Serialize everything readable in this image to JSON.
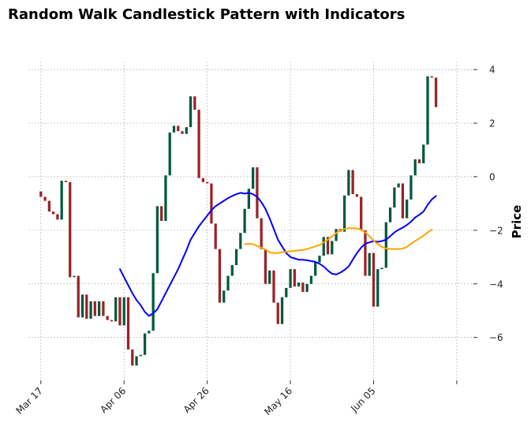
{
  "chart_data": {
    "type": "candlestick",
    "title": "Random Walk Candlestick Pattern with Indicators",
    "ylabel": "Price",
    "xlabel": "",
    "ylim": [
      -7.6,
      4.3
    ],
    "x_tick_labels": [
      "Mar 17",
      "Apr 06",
      "Apr 26",
      "May 16",
      "Jun 05",
      ""
    ],
    "x_tick_dates": [
      "2023-03-17",
      "2023-04-06",
      "2023-04-26",
      "2023-05-16",
      "2023-06-05",
      "2023-06-25"
    ],
    "y_ticks": [
      -6,
      -4,
      -2,
      0,
      2,
      4
    ],
    "y_tick_labels": [
      "−6",
      "−4",
      "−2",
      "0",
      "2",
      "4"
    ],
    "xlim": [
      "2023-03-14",
      "2023-06-29"
    ],
    "grid": true,
    "colors": {
      "up": "#00593a",
      "down": "#9b2226",
      "ma_short": "#0000ff",
      "ma_long": "#ffa500",
      "grid": "#aaaaaa"
    },
    "candles": [
      {
        "date": "2023-03-17",
        "open": -0.55,
        "close": -0.75
      },
      {
        "date": "2023-03-18",
        "open": -0.75,
        "close": -0.9
      },
      {
        "date": "2023-03-19",
        "open": -0.9,
        "close": -1.3
      },
      {
        "date": "2023-03-20",
        "open": -1.3,
        "close": -1.4
      },
      {
        "date": "2023-03-21",
        "open": -1.4,
        "close": -1.6
      },
      {
        "date": "2023-03-22",
        "open": -1.6,
        "close": -0.15
      },
      {
        "date": "2023-03-23",
        "open": -0.15,
        "close": -0.2
      },
      {
        "date": "2023-03-24",
        "open": -0.2,
        "close": -3.75
      },
      {
        "date": "2023-03-25",
        "open": -3.75,
        "close": -3.7
      },
      {
        "date": "2023-03-26",
        "open": -3.7,
        "close": -5.25
      },
      {
        "date": "2023-03-27",
        "open": -5.25,
        "close": -4.4
      },
      {
        "date": "2023-03-28",
        "open": -4.4,
        "close": -5.3
      },
      {
        "date": "2023-03-29",
        "open": -5.3,
        "close": -4.65
      },
      {
        "date": "2023-03-30",
        "open": -4.65,
        "close": -5.2
      },
      {
        "date": "2023-03-31",
        "open": -5.2,
        "close": -4.65
      },
      {
        "date": "2023-04-01",
        "open": -4.65,
        "close": -5.2
      },
      {
        "date": "2023-04-02",
        "open": -5.2,
        "close": -5.35
      },
      {
        "date": "2023-04-03",
        "open": -5.35,
        "close": -5.4
      },
      {
        "date": "2023-04-04",
        "open": -5.4,
        "close": -4.5
      },
      {
        "date": "2023-04-05",
        "open": -4.5,
        "close": -5.55
      },
      {
        "date": "2023-04-06",
        "open": -5.55,
        "close": -4.5
      },
      {
        "date": "2023-04-07",
        "open": -4.5,
        "close": -6.45
      },
      {
        "date": "2023-04-08",
        "open": -6.45,
        "close": -7.05
      },
      {
        "date": "2023-04-09",
        "open": -7.05,
        "close": -6.7
      },
      {
        "date": "2023-04-10",
        "open": -6.7,
        "close": -6.65
      },
      {
        "date": "2023-04-11",
        "open": -6.65,
        "close": -5.85
      },
      {
        "date": "2023-04-12",
        "open": -5.85,
        "close": -5.75
      },
      {
        "date": "2023-04-13",
        "open": -5.75,
        "close": -3.6
      },
      {
        "date": "2023-04-14",
        "open": -3.6,
        "close": -1.1
      },
      {
        "date": "2023-04-15",
        "open": -1.1,
        "close": -1.65
      },
      {
        "date": "2023-04-16",
        "open": -1.65,
        "close": 0.05
      },
      {
        "date": "2023-04-17",
        "open": 0.05,
        "close": 1.65
      },
      {
        "date": "2023-04-18",
        "open": 1.65,
        "close": 1.9
      },
      {
        "date": "2023-04-19",
        "open": 1.9,
        "close": 1.7
      },
      {
        "date": "2023-04-20",
        "open": 1.7,
        "close": 1.6
      },
      {
        "date": "2023-04-21",
        "open": 1.6,
        "close": 1.85
      },
      {
        "date": "2023-04-22",
        "open": 1.85,
        "close": 3.0
      },
      {
        "date": "2023-04-23",
        "open": 3.0,
        "close": 2.5
      },
      {
        "date": "2023-04-24",
        "open": 2.5,
        "close": -0.05
      },
      {
        "date": "2023-04-25",
        "open": -0.05,
        "close": -0.2
      },
      {
        "date": "2023-04-26",
        "open": -0.2,
        "close": -0.25
      },
      {
        "date": "2023-04-27",
        "open": -0.25,
        "close": -1.75
      },
      {
        "date": "2023-04-28",
        "open": -1.75,
        "close": -2.7
      },
      {
        "date": "2023-04-29",
        "open": -2.7,
        "close": -4.7
      },
      {
        "date": "2023-04-30",
        "open": -4.7,
        "close": -4.25
      },
      {
        "date": "2023-05-01",
        "open": -4.25,
        "close": -3.7
      },
      {
        "date": "2023-05-02",
        "open": -3.7,
        "close": -3.3
      },
      {
        "date": "2023-05-03",
        "open": -3.3,
        "close": -2.7
      },
      {
        "date": "2023-05-04",
        "open": -2.7,
        "close": -2.1
      },
      {
        "date": "2023-05-05",
        "open": -2.1,
        "close": -1.2
      },
      {
        "date": "2023-05-06",
        "open": -1.2,
        "close": -0.45
      },
      {
        "date": "2023-05-07",
        "open": -0.45,
        "close": 0.35
      },
      {
        "date": "2023-05-08",
        "open": 0.35,
        "close": -1.55
      },
      {
        "date": "2023-05-09",
        "open": -1.55,
        "close": -2.7
      },
      {
        "date": "2023-05-10",
        "open": -2.7,
        "close": -4.0
      },
      {
        "date": "2023-05-11",
        "open": -4.0,
        "close": -3.5
      },
      {
        "date": "2023-05-12",
        "open": -3.5,
        "close": -4.7
      },
      {
        "date": "2023-05-13",
        "open": -4.7,
        "close": -5.5
      },
      {
        "date": "2023-05-14",
        "open": -5.5,
        "close": -4.5
      },
      {
        "date": "2023-05-15",
        "open": -4.5,
        "close": -4.15
      },
      {
        "date": "2023-05-16",
        "open": -4.15,
        "close": -3.45
      },
      {
        "date": "2023-05-17",
        "open": -3.45,
        "close": -4.1
      },
      {
        "date": "2023-05-18",
        "open": -4.1,
        "close": -3.95
      },
      {
        "date": "2023-05-19",
        "open": -3.95,
        "close": -4.3
      },
      {
        "date": "2023-05-20",
        "open": -4.3,
        "close": -4.0
      },
      {
        "date": "2023-05-21",
        "open": -4.0,
        "close": -3.7
      },
      {
        "date": "2023-05-22",
        "open": -3.7,
        "close": -3.2
      },
      {
        "date": "2023-05-23",
        "open": -3.2,
        "close": -2.95
      },
      {
        "date": "2023-05-24",
        "open": -2.95,
        "close": -2.25
      },
      {
        "date": "2023-05-25",
        "open": -2.25,
        "close": -2.9
      },
      {
        "date": "2023-05-26",
        "open": -2.9,
        "close": -2.4
      },
      {
        "date": "2023-05-27",
        "open": -2.4,
        "close": -1.95
      },
      {
        "date": "2023-05-28",
        "open": -1.95,
        "close": -2.05
      },
      {
        "date": "2023-05-29",
        "open": -2.05,
        "close": -0.7
      },
      {
        "date": "2023-05-30",
        "open": -0.7,
        "close": 0.25
      },
      {
        "date": "2023-05-31",
        "open": 0.25,
        "close": -0.65
      },
      {
        "date": "2023-06-01",
        "open": -0.65,
        "close": -0.75
      },
      {
        "date": "2023-06-02",
        "open": -0.75,
        "close": -2.0
      },
      {
        "date": "2023-06-03",
        "open": -2.0,
        "close": -3.7
      },
      {
        "date": "2023-06-04",
        "open": -3.7,
        "close": -2.85
      },
      {
        "date": "2023-06-05",
        "open": -2.85,
        "close": -4.85
      },
      {
        "date": "2023-06-06",
        "open": -4.85,
        "close": -3.45
      },
      {
        "date": "2023-06-07",
        "open": -3.45,
        "close": -3.4
      },
      {
        "date": "2023-06-08",
        "open": -3.4,
        "close": -1.7
      },
      {
        "date": "2023-06-09",
        "open": -1.7,
        "close": -1.15
      },
      {
        "date": "2023-06-10",
        "open": -1.15,
        "close": -0.4
      },
      {
        "date": "2023-06-11",
        "open": -0.4,
        "close": -0.25
      },
      {
        "date": "2023-06-12",
        "open": -0.25,
        "close": -1.55
      },
      {
        "date": "2023-06-13",
        "open": -1.55,
        "close": -0.85
      },
      {
        "date": "2023-06-14",
        "open": -0.85,
        "close": 0.05
      },
      {
        "date": "2023-06-15",
        "open": 0.05,
        "close": 0.65
      },
      {
        "date": "2023-06-16",
        "open": 0.65,
        "close": 0.5
      },
      {
        "date": "2023-06-17",
        "open": 0.5,
        "close": 1.2
      },
      {
        "date": "2023-06-18",
        "open": 1.2,
        "close": 3.75
      },
      {
        "date": "2023-06-19",
        "open": 3.75,
        "close": 3.7
      },
      {
        "date": "2023-06-20",
        "open": 3.7,
        "close": 2.6
      }
    ],
    "series": [
      {
        "values_date_start": "2023-04-05",
        "values": [
          -3.45,
          -3.75,
          -4.05,
          -4.35,
          -4.6,
          -4.8,
          -5.05,
          -5.2,
          -5.1,
          -4.95,
          -4.65,
          -4.35,
          -4.05,
          -3.75,
          -3.45,
          -3.1,
          -2.75,
          -2.35,
          -2.1,
          -1.85,
          -1.65,
          -1.45,
          -1.25,
          -1.1,
          -1.0,
          -0.9,
          -0.8,
          -0.72,
          -0.65,
          -0.6,
          -0.63,
          -0.6,
          -0.65,
          -0.75,
          -0.95,
          -1.2,
          -1.55,
          -1.95,
          -2.35,
          -2.6,
          -2.85,
          -3.0,
          -3.05,
          -3.1,
          -3.1,
          -3.12,
          -3.15,
          -3.18,
          -3.25,
          -3.35,
          -3.5,
          -3.62,
          -3.65,
          -3.58,
          -3.48,
          -3.35,
          -3.1,
          -2.85,
          -2.65,
          -2.5,
          -2.45,
          -2.4,
          -2.43,
          -2.4,
          -2.35,
          -2.22,
          -2.08,
          -1.98,
          -1.9,
          -1.8,
          -1.68,
          -1.52,
          -1.42,
          -1.3,
          -1.05,
          -0.85,
          -0.72
        ]
      },
      {
        "values_date_start": "2023-05-05",
        "values": [
          -2.52,
          -2.5,
          -2.52,
          -2.58,
          -2.65,
          -2.72,
          -2.82,
          -2.85,
          -2.85,
          -2.82,
          -2.8,
          -2.78,
          -2.77,
          -2.75,
          -2.73,
          -2.7,
          -2.65,
          -2.6,
          -2.55,
          -2.45,
          -2.35,
          -2.22,
          -2.1,
          -2.0,
          -1.95,
          -1.92,
          -1.92,
          -1.93,
          -1.98,
          -2.08,
          -2.22,
          -2.38,
          -2.52,
          -2.62,
          -2.68,
          -2.7,
          -2.7,
          -2.7,
          -2.68,
          -2.62,
          -2.5,
          -2.4,
          -2.3,
          -2.2,
          -2.08,
          -1.97
        ]
      }
    ]
  }
}
